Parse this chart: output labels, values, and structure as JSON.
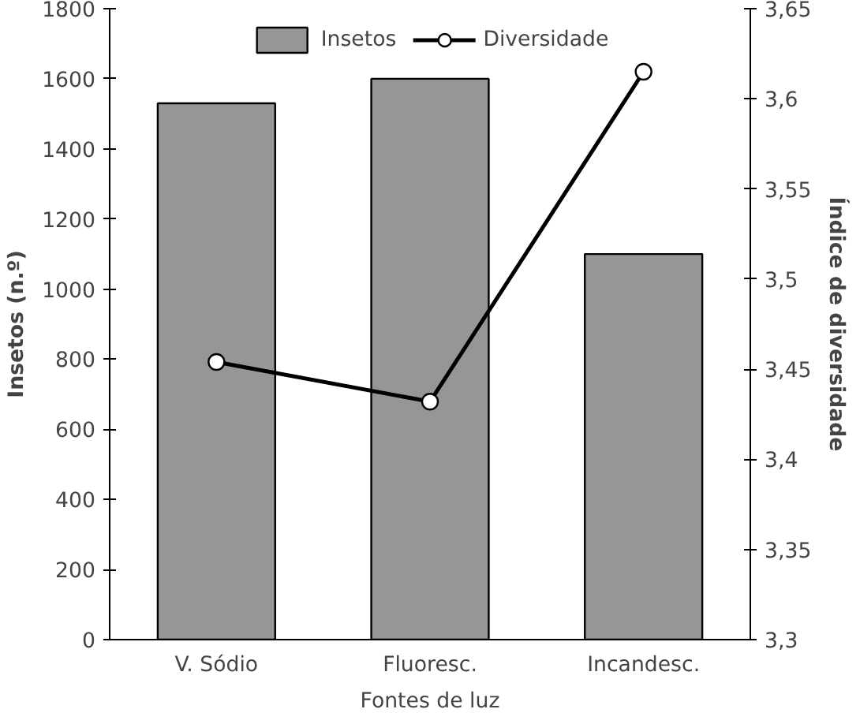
{
  "chart_data": {
    "type": "bar",
    "categories": [
      "V. Sódio",
      "Fluoresc.",
      "Incandesc."
    ],
    "xlabel": "Fontes de luz",
    "ylabel": "Insetos (n.º)",
    "y2label": "Índice de diversidade",
    "series": [
      {
        "name": "Insetos",
        "color": "#969696",
        "values": [
          1530,
          1600,
          1100
        ]
      },
      {
        "name": "Diversidade",
        "type": "line",
        "axis": "y2",
        "color": "#000000",
        "values": [
          3.454,
          3.432,
          3.615
        ]
      }
    ],
    "ylim": [
      0,
      1800
    ],
    "yticks": [
      0,
      200,
      400,
      600,
      800,
      1000,
      1200,
      1400,
      1600,
      1800
    ],
    "y2lim": [
      3.3,
      3.65
    ],
    "y2ticks": [
      {
        "value": 3.3,
        "label": "3,3"
      },
      {
        "value": 3.35,
        "label": "3,35"
      },
      {
        "value": 3.4,
        "label": "3,4"
      },
      {
        "value": 3.45,
        "label": "3,45"
      },
      {
        "value": 3.5,
        "label": "3,5"
      },
      {
        "value": 3.55,
        "label": "3,55"
      },
      {
        "value": 3.6,
        "label": "3,6"
      },
      {
        "value": 3.65,
        "label": "3,65"
      }
    ],
    "marker": "circle",
    "legend": "top",
    "grid": false
  }
}
